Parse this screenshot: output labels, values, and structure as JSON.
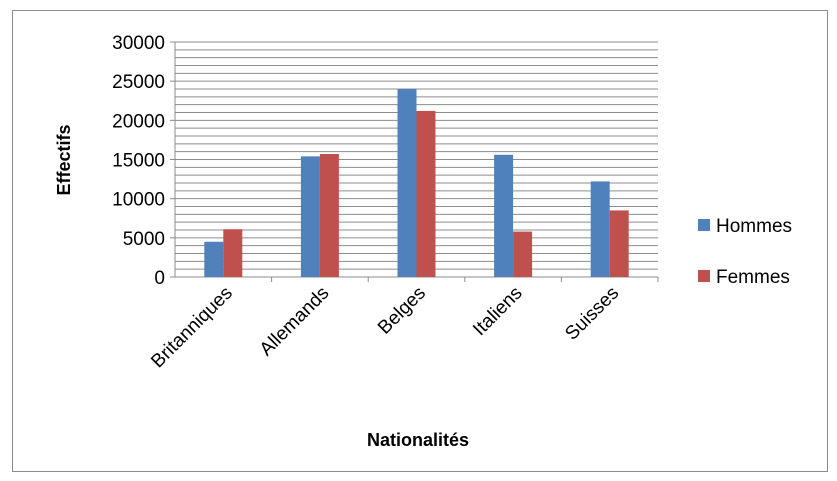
{
  "chart_data": {
    "type": "bar",
    "title": "",
    "xlabel": "Nationalités",
    "ylabel": "Effectifs",
    "categories": [
      "Britanniques",
      "Allemands",
      "Belges",
      "Italiens",
      "Suisses"
    ],
    "series": [
      {
        "name": "Hommes",
        "color": "#4f81bd",
        "values": [
          4500,
          15400,
          24000,
          15600,
          12200
        ]
      },
      {
        "name": "Femmes",
        "color": "#c0504d",
        "values": [
          6100,
          15700,
          21200,
          5800,
          8500
        ]
      }
    ],
    "ylim": [
      0,
      30000
    ],
    "yticks": [
      "0",
      "5000",
      "10000",
      "15000",
      "20000",
      "25000",
      "30000"
    ],
    "grid": true,
    "legend_position": "right"
  }
}
